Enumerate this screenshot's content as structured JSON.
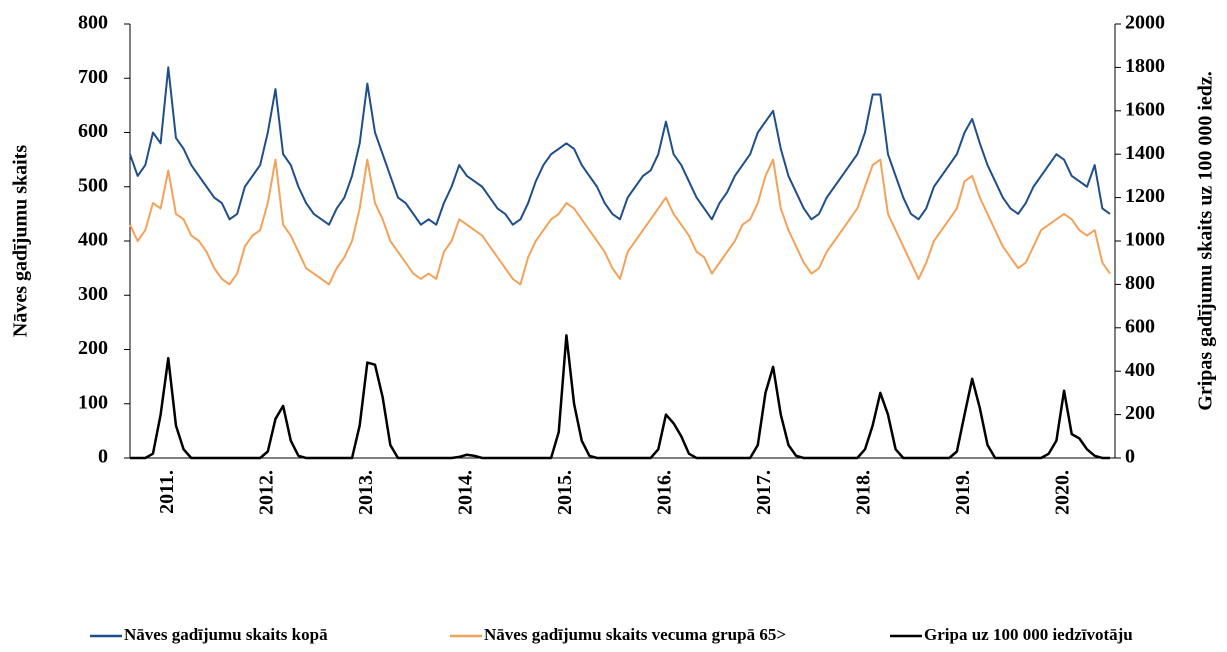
{
  "chart_data": {
    "type": "line",
    "y_label": "Nāves gadījumu skaits",
    "y2_label": "Gripas gadījumu skaits uz 100 000 iedz.",
    "categories": [
      null,
      null,
      null,
      null,
      null,
      "2011.",
      null,
      null,
      null,
      null,
      null,
      null,
      null,
      null,
      null,
      null,
      null,
      null,
      "2012.",
      null,
      null,
      null,
      null,
      null,
      null,
      null,
      null,
      null,
      null,
      null,
      null,
      "2013.",
      null,
      null,
      null,
      null,
      null,
      null,
      null,
      null,
      null,
      null,
      null,
      null,
      "2014.",
      null,
      null,
      null,
      null,
      null,
      null,
      null,
      null,
      null,
      null,
      null,
      null,
      "2015.",
      null,
      null,
      null,
      null,
      null,
      null,
      null,
      null,
      null,
      null,
      null,
      null,
      "2016.",
      null,
      null,
      null,
      null,
      null,
      null,
      null,
      null,
      null,
      null,
      null,
      null,
      "2017.",
      null,
      null,
      null,
      null,
      null,
      null,
      null,
      null,
      null,
      null,
      null,
      null,
      "2018.",
      null,
      null,
      null,
      null,
      null,
      null,
      null,
      null,
      null,
      null,
      null,
      null,
      "2019.",
      null,
      null,
      null,
      null,
      null,
      null,
      null,
      null,
      null,
      null,
      null,
      null,
      "2020.",
      null,
      null,
      null,
      null,
      null,
      null
    ],
    "series": [
      {
        "name": "Nāves gadījumu skaits kopā",
        "color": "#1f4e89",
        "axis": "y",
        "values": [
          560,
          520,
          540,
          600,
          580,
          720,
          590,
          570,
          540,
          520,
          500,
          480,
          470,
          440,
          450,
          500,
          520,
          540,
          600,
          680,
          560,
          540,
          500,
          470,
          450,
          440,
          430,
          460,
          480,
          520,
          580,
          690,
          600,
          560,
          520,
          480,
          470,
          450,
          430,
          440,
          430,
          470,
          500,
          540,
          520,
          510,
          500,
          480,
          460,
          450,
          430,
          440,
          470,
          510,
          540,
          560,
          570,
          580,
          570,
          540,
          520,
          500,
          470,
          450,
          440,
          480,
          500,
          520,
          530,
          560,
          620,
          560,
          540,
          510,
          480,
          460,
          440,
          470,
          490,
          520,
          540,
          560,
          600,
          620,
          640,
          570,
          520,
          490,
          460,
          440,
          450,
          480,
          500,
          520,
          540,
          560,
          600,
          670,
          670,
          560,
          520,
          480,
          450,
          440,
          460,
          500,
          520,
          540,
          560,
          600,
          625,
          580,
          540,
          510,
          480,
          460,
          450,
          470,
          500,
          520,
          540,
          560,
          550,
          520,
          510,
          500,
          540,
          460,
          450
        ]
      },
      {
        "name": "Nāves gadījumu skaits vecuma grupā 65>",
        "color": "#f4a259",
        "axis": "y",
        "values": [
          430,
          400,
          420,
          470,
          460,
          530,
          450,
          440,
          410,
          400,
          380,
          350,
          330,
          320,
          340,
          390,
          410,
          420,
          470,
          550,
          430,
          410,
          380,
          350,
          340,
          330,
          320,
          350,
          370,
          400,
          460,
          550,
          470,
          440,
          400,
          380,
          360,
          340,
          330,
          340,
          330,
          380,
          400,
          440,
          430,
          420,
          410,
          390,
          370,
          350,
          330,
          320,
          370,
          400,
          420,
          440,
          450,
          470,
          460,
          440,
          420,
          400,
          380,
          350,
          330,
          380,
          400,
          420,
          440,
          460,
          480,
          450,
          430,
          410,
          380,
          370,
          340,
          360,
          380,
          400,
          430,
          440,
          470,
          520,
          550,
          460,
          420,
          390,
          360,
          340,
          350,
          380,
          400,
          420,
          440,
          460,
          500,
          540,
          550,
          450,
          420,
          390,
          360,
          330,
          360,
          400,
          420,
          440,
          460,
          510,
          520,
          480,
          450,
          420,
          390,
          370,
          350,
          360,
          390,
          420,
          430,
          440,
          450,
          440,
          420,
          410,
          420,
          360,
          340
        ]
      },
      {
        "name": "Gripa uz 100 000 iedzīvotāju",
        "color": "#000000",
        "axis": "y2",
        "values": [
          0,
          0,
          0,
          20,
          200,
          460,
          150,
          40,
          0,
          0,
          0,
          0,
          0,
          0,
          0,
          0,
          0,
          0,
          30,
          180,
          240,
          80,
          10,
          0,
          0,
          0,
          0,
          0,
          0,
          0,
          150,
          440,
          430,
          280,
          60,
          0,
          0,
          0,
          0,
          0,
          0,
          0,
          0,
          5,
          15,
          10,
          0,
          0,
          0,
          0,
          0,
          0,
          0,
          0,
          0,
          0,
          120,
          565,
          250,
          80,
          10,
          0,
          0,
          0,
          0,
          0,
          0,
          0,
          0,
          40,
          200,
          160,
          100,
          20,
          0,
          0,
          0,
          0,
          0,
          0,
          0,
          0,
          60,
          300,
          420,
          200,
          60,
          10,
          0,
          0,
          0,
          0,
          0,
          0,
          0,
          0,
          40,
          150,
          300,
          200,
          40,
          0,
          0,
          0,
          0,
          0,
          0,
          0,
          30,
          200,
          365,
          230,
          60,
          0,
          0,
          0,
          0,
          0,
          0,
          0,
          20,
          80,
          310,
          110,
          90,
          40,
          10,
          0,
          0
        ]
      }
    ],
    "ylim": [
      0,
      800
    ],
    "yticks": [
      0,
      100,
      200,
      300,
      400,
      500,
      600,
      700,
      800
    ],
    "y2lim": [
      0,
      2000
    ],
    "y2ticks": [
      0,
      200,
      400,
      600,
      800,
      1000,
      1200,
      1400,
      1600,
      1800,
      2000
    ],
    "grid": false,
    "legend": "bottom"
  }
}
